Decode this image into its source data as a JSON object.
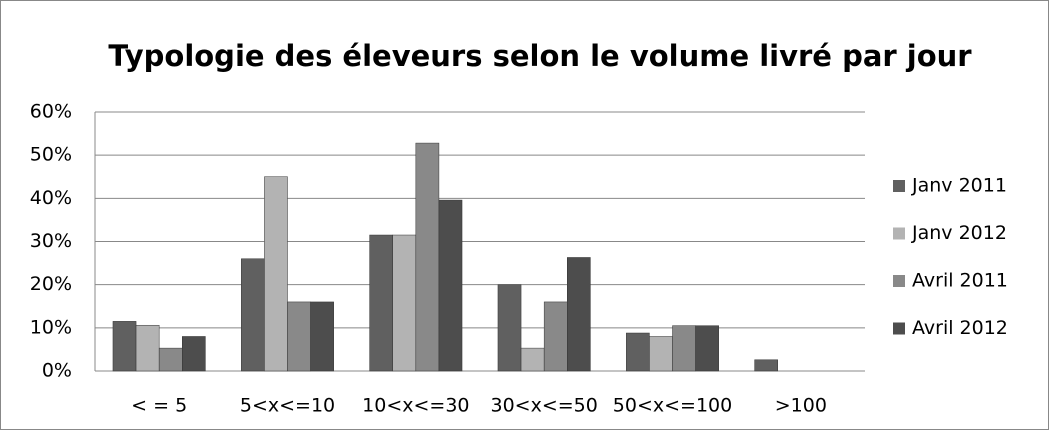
{
  "chart_data": {
    "type": "bar",
    "title": "Typologie des éleveurs selon le volume livré par jour",
    "categories": [
      "< = 5",
      "5<x<=10",
      "10<x<=30",
      "30<x<=50",
      "50<x<=100",
      ">100"
    ],
    "series": [
      {
        "name": "Janv 2011",
        "color": "#606060",
        "values": [
          11.5,
          26,
          31.5,
          20,
          8.8,
          2.6
        ]
      },
      {
        "name": "Janv 2012",
        "color": "#b3b3b3",
        "values": [
          10.6,
          45,
          31.5,
          5.3,
          8,
          0
        ]
      },
      {
        "name": "Avril 2011",
        "color": "#898989",
        "values": [
          5.3,
          16,
          52.8,
          16,
          10.5,
          0
        ]
      },
      {
        "name": "Avril 2012",
        "color": "#4d4d4d",
        "values": [
          8,
          16,
          39.6,
          26.3,
          10.5,
          0
        ]
      }
    ],
    "ylim": [
      0,
      60
    ],
    "yticks": [
      {
        "value": 0,
        "label": "0%"
      },
      {
        "value": 10,
        "label": "10%"
      },
      {
        "value": 20,
        "label": "20%"
      },
      {
        "value": 30,
        "label": "30%"
      },
      {
        "value": 40,
        "label": "40%"
      },
      {
        "value": 50,
        "label": "50%"
      },
      {
        "value": 60,
        "label": "60%"
      }
    ],
    "grid": true,
    "legend": "right"
  }
}
